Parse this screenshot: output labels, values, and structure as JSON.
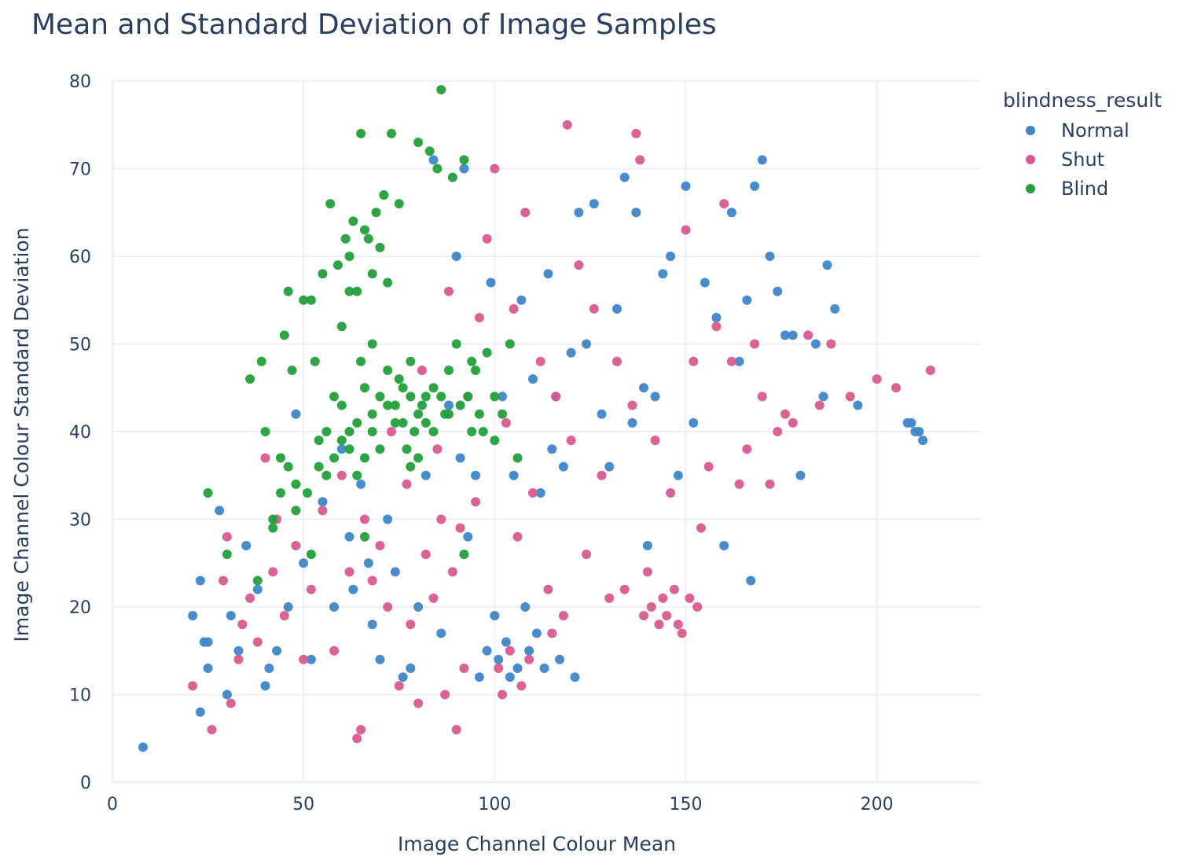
{
  "chart_data": {
    "type": "scatter",
    "title": "Mean and Standard Deviation of Image Samples",
    "xlabel": "Image Channel Colour Mean",
    "ylabel": "Image Channel Colour Standard Deviation",
    "xlim": [
      0,
      227
    ],
    "ylim": [
      0,
      80
    ],
    "x_ticks": [
      0,
      50,
      100,
      150,
      200
    ],
    "y_ticks": [
      0,
      10,
      20,
      30,
      40,
      50,
      60,
      70,
      80
    ],
    "legend_title": "blindness_result",
    "legend_position": "top-right",
    "grid": true,
    "series": [
      {
        "name": "Normal",
        "color": "#3f86c8",
        "points": [
          [
            8,
            4
          ],
          [
            21,
            19
          ],
          [
            23,
            23
          ],
          [
            24,
            16
          ],
          [
            25,
            13
          ],
          [
            23,
            8
          ],
          [
            25,
            16
          ],
          [
            28,
            31
          ],
          [
            30,
            10
          ],
          [
            31,
            19
          ],
          [
            33,
            15
          ],
          [
            35,
            27
          ],
          [
            38,
            22
          ],
          [
            40,
            11
          ],
          [
            41,
            13
          ],
          [
            43,
            15
          ],
          [
            46,
            20
          ],
          [
            48,
            42
          ],
          [
            50,
            25
          ],
          [
            52,
            14
          ],
          [
            55,
            32
          ],
          [
            58,
            20
          ],
          [
            60,
            38
          ],
          [
            62,
            28
          ],
          [
            63,
            22
          ],
          [
            65,
            34
          ],
          [
            67,
            25
          ],
          [
            68,
            18
          ],
          [
            70,
            14
          ],
          [
            72,
            30
          ],
          [
            74,
            24
          ],
          [
            76,
            12
          ],
          [
            78,
            13
          ],
          [
            80,
            20
          ],
          [
            82,
            35
          ],
          [
            84,
            71
          ],
          [
            86,
            17
          ],
          [
            88,
            43
          ],
          [
            90,
            60
          ],
          [
            91,
            37
          ],
          [
            92,
            70
          ],
          [
            93,
            28
          ],
          [
            95,
            35
          ],
          [
            96,
            12
          ],
          [
            98,
            15
          ],
          [
            99,
            57
          ],
          [
            100,
            19
          ],
          [
            101,
            14
          ],
          [
            102,
            44
          ],
          [
            103,
            16
          ],
          [
            104,
            12
          ],
          [
            105,
            35
          ],
          [
            106,
            13
          ],
          [
            107,
            55
          ],
          [
            108,
            20
          ],
          [
            109,
            15
          ],
          [
            110,
            46
          ],
          [
            111,
            17
          ],
          [
            112,
            33
          ],
          [
            113,
            13
          ],
          [
            114,
            58
          ],
          [
            115,
            38
          ],
          [
            116,
            44
          ],
          [
            117,
            14
          ],
          [
            118,
            36
          ],
          [
            120,
            49
          ],
          [
            121,
            12
          ],
          [
            122,
            65
          ],
          [
            124,
            50
          ],
          [
            126,
            66
          ],
          [
            128,
            42
          ],
          [
            130,
            36
          ],
          [
            132,
            54
          ],
          [
            134,
            69
          ],
          [
            136,
            41
          ],
          [
            137,
            65
          ],
          [
            139,
            45
          ],
          [
            140,
            27
          ],
          [
            142,
            44
          ],
          [
            144,
            58
          ],
          [
            146,
            60
          ],
          [
            148,
            35
          ],
          [
            150,
            68
          ],
          [
            152,
            41
          ],
          [
            155,
            57
          ],
          [
            158,
            53
          ],
          [
            160,
            27
          ],
          [
            162,
            65
          ],
          [
            164,
            48
          ],
          [
            166,
            55
          ],
          [
            167,
            23
          ],
          [
            168,
            68
          ],
          [
            170,
            71
          ],
          [
            172,
            60
          ],
          [
            174,
            56
          ],
          [
            176,
            51
          ],
          [
            178,
            51
          ],
          [
            180,
            35
          ],
          [
            184,
            50
          ],
          [
            186,
            44
          ],
          [
            187,
            59
          ],
          [
            189,
            54
          ],
          [
            195,
            43
          ],
          [
            208,
            41
          ],
          [
            209,
            41
          ],
          [
            210,
            40
          ],
          [
            211,
            40
          ],
          [
            212,
            39
          ]
        ]
      },
      {
        "name": "Shut",
        "color": "#d95a91",
        "points": [
          [
            21,
            11
          ],
          [
            26,
            6
          ],
          [
            29,
            23
          ],
          [
            30,
            28
          ],
          [
            31,
            9
          ],
          [
            33,
            14
          ],
          [
            34,
            18
          ],
          [
            36,
            21
          ],
          [
            38,
            16
          ],
          [
            40,
            37
          ],
          [
            42,
            24
          ],
          [
            43,
            30
          ],
          [
            45,
            19
          ],
          [
            48,
            27
          ],
          [
            50,
            14
          ],
          [
            52,
            22
          ],
          [
            55,
            31
          ],
          [
            58,
            15
          ],
          [
            60,
            35
          ],
          [
            62,
            24
          ],
          [
            64,
            5
          ],
          [
            65,
            6
          ],
          [
            66,
            30
          ],
          [
            68,
            23
          ],
          [
            70,
            27
          ],
          [
            72,
            20
          ],
          [
            73,
            40
          ],
          [
            75,
            11
          ],
          [
            77,
            34
          ],
          [
            78,
            18
          ],
          [
            80,
            9
          ],
          [
            81,
            47
          ],
          [
            82,
            26
          ],
          [
            84,
            21
          ],
          [
            85,
            38
          ],
          [
            86,
            30
          ],
          [
            87,
            10
          ],
          [
            88,
            56
          ],
          [
            89,
            24
          ],
          [
            90,
            6
          ],
          [
            91,
            29
          ],
          [
            92,
            13
          ],
          [
            93,
            44
          ],
          [
            95,
            32
          ],
          [
            96,
            53
          ],
          [
            98,
            62
          ],
          [
            100,
            70
          ],
          [
            101,
            13
          ],
          [
            102,
            10
          ],
          [
            103,
            41
          ],
          [
            104,
            15
          ],
          [
            105,
            54
          ],
          [
            106,
            28
          ],
          [
            107,
            11
          ],
          [
            108,
            65
          ],
          [
            109,
            14
          ],
          [
            110,
            33
          ],
          [
            112,
            48
          ],
          [
            114,
            22
          ],
          [
            115,
            17
          ],
          [
            116,
            44
          ],
          [
            118,
            19
          ],
          [
            119,
            75
          ],
          [
            120,
            39
          ],
          [
            122,
            59
          ],
          [
            124,
            26
          ],
          [
            126,
            54
          ],
          [
            128,
            35
          ],
          [
            130,
            21
          ],
          [
            132,
            48
          ],
          [
            134,
            22
          ],
          [
            136,
            43
          ],
          [
            137,
            74
          ],
          [
            138,
            71
          ],
          [
            139,
            19
          ],
          [
            140,
            24
          ],
          [
            141,
            20
          ],
          [
            142,
            39
          ],
          [
            143,
            18
          ],
          [
            144,
            21
          ],
          [
            145,
            19
          ],
          [
            146,
            33
          ],
          [
            147,
            22
          ],
          [
            148,
            18
          ],
          [
            149,
            17
          ],
          [
            150,
            63
          ],
          [
            151,
            21
          ],
          [
            152,
            48
          ],
          [
            153,
            20
          ],
          [
            154,
            29
          ],
          [
            156,
            36
          ],
          [
            158,
            52
          ],
          [
            160,
            66
          ],
          [
            162,
            48
          ],
          [
            164,
            34
          ],
          [
            166,
            38
          ],
          [
            168,
            50
          ],
          [
            170,
            44
          ],
          [
            172,
            34
          ],
          [
            174,
            40
          ],
          [
            176,
            42
          ],
          [
            178,
            41
          ],
          [
            182,
            51
          ],
          [
            185,
            43
          ],
          [
            188,
            50
          ],
          [
            193,
            44
          ],
          [
            200,
            46
          ],
          [
            205,
            45
          ],
          [
            214,
            47
          ]
        ]
      },
      {
        "name": "Blind",
        "color": "#23a03a",
        "points": [
          [
            25,
            33
          ],
          [
            30,
            26
          ],
          [
            36,
            46
          ],
          [
            38,
            23
          ],
          [
            39,
            48
          ],
          [
            40,
            40
          ],
          [
            42,
            30
          ],
          [
            44,
            37
          ],
          [
            45,
            51
          ],
          [
            46,
            56
          ],
          [
            47,
            47
          ],
          [
            48,
            34
          ],
          [
            50,
            55
          ],
          [
            51,
            33
          ],
          [
            52,
            55
          ],
          [
            53,
            48
          ],
          [
            54,
            39
          ],
          [
            55,
            58
          ],
          [
            56,
            35
          ],
          [
            57,
            66
          ],
          [
            58,
            44
          ],
          [
            59,
            59
          ],
          [
            60,
            39
          ],
          [
            61,
            62
          ],
          [
            62,
            40
          ],
          [
            63,
            64
          ],
          [
            64,
            41
          ],
          [
            65,
            74
          ],
          [
            66,
            45
          ],
          [
            67,
            62
          ],
          [
            68,
            42
          ],
          [
            69,
            65
          ],
          [
            70,
            44
          ],
          [
            71,
            67
          ],
          [
            72,
            43
          ],
          [
            73,
            74
          ],
          [
            74,
            41
          ],
          [
            75,
            66
          ],
          [
            76,
            45
          ],
          [
            77,
            38
          ],
          [
            78,
            48
          ],
          [
            79,
            40
          ],
          [
            80,
            73
          ],
          [
            81,
            43
          ],
          [
            82,
            41
          ],
          [
            83,
            72
          ],
          [
            84,
            45
          ],
          [
            85,
            70
          ],
          [
            86,
            79
          ],
          [
            87,
            42
          ],
          [
            88,
            47
          ],
          [
            89,
            69
          ],
          [
            90,
            50
          ],
          [
            91,
            43
          ],
          [
            92,
            71
          ],
          [
            93,
            44
          ],
          [
            94,
            48
          ],
          [
            95,
            47
          ],
          [
            96,
            42
          ],
          [
            97,
            40
          ],
          [
            98,
            49
          ],
          [
            100,
            44
          ],
          [
            102,
            42
          ],
          [
            104,
            50
          ],
          [
            106,
            37
          ],
          [
            62,
            60
          ],
          [
            64,
            56
          ],
          [
            66,
            63
          ],
          [
            68,
            58
          ],
          [
            70,
            61
          ],
          [
            72,
            57
          ],
          [
            56,
            40
          ],
          [
            58,
            37
          ],
          [
            60,
            43
          ],
          [
            62,
            38
          ],
          [
            64,
            35
          ],
          [
            66,
            37
          ],
          [
            68,
            40
          ],
          [
            70,
            38
          ],
          [
            74,
            43
          ],
          [
            76,
            41
          ],
          [
            78,
            44
          ],
          [
            80,
            42
          ],
          [
            84,
            40
          ],
          [
            86,
            44
          ],
          [
            88,
            42
          ],
          [
            60,
            52
          ],
          [
            62,
            56
          ],
          [
            65,
            48
          ],
          [
            68,
            50
          ],
          [
            72,
            47
          ],
          [
            75,
            46
          ],
          [
            52,
            26
          ],
          [
            54,
            36
          ],
          [
            48,
            31
          ],
          [
            46,
            36
          ],
          [
            44,
            33
          ],
          [
            42,
            29
          ],
          [
            78,
            36
          ],
          [
            80,
            37
          ],
          [
            82,
            44
          ],
          [
            92,
            26
          ],
          [
            94,
            40
          ],
          [
            100,
            39
          ],
          [
            66,
            28
          ]
        ]
      }
    ]
  }
}
